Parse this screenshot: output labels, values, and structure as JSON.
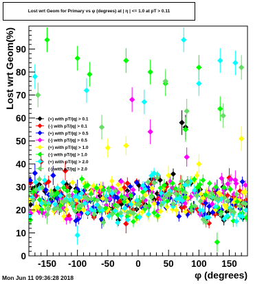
{
  "chart_data": {
    "type": "scatter",
    "title": "Lost wrt Geom for Primary vs φ (degrees) at | η | <= 1.0 at pT > 0.11",
    "xlabel": "φ (degrees)",
    "ylabel": "Lost wrt Geom(%)",
    "xlim": [
      -180,
      180
    ],
    "ylim": [
      0,
      100
    ],
    "x_ticks": [
      "-150",
      "-100",
      "-50",
      "0",
      "50",
      "100",
      "150"
    ],
    "y_ticks": [
      "0",
      "10",
      "20",
      "30",
      "40",
      "50",
      "60",
      "70",
      "80",
      "90"
    ],
    "grid": false,
    "legend_placement": "left-middle",
    "series": [
      {
        "name": "(+) with pT/|q| > 0.1",
        "color": "#000000",
        "marker": "diamond",
        "seed": 11,
        "highlights": [
          [
            72,
            58
          ],
          [
            78,
            56
          ],
          [
            -130,
            22
          ],
          [
            -100,
            19
          ],
          [
            40,
            27
          ],
          [
            140,
            30
          ]
        ]
      },
      {
        "name": "(-) with pT/|q| > 0.1",
        "color": "#ff0000",
        "marker": "diamond",
        "seed": 23,
        "highlights": [
          [
            -120,
            37
          ],
          [
            -160,
            41
          ],
          [
            -20,
            14
          ],
          [
            70,
            31
          ],
          [
            150,
            34
          ],
          [
            110,
            23
          ]
        ]
      },
      {
        "name": "(+) with pT/|q| > 0.5",
        "color": "#0000ff",
        "marker": "diamond",
        "seed": 37,
        "highlights": [
          [
            -170,
            36
          ],
          [
            -140,
            35
          ],
          [
            -100,
            29
          ],
          [
            -60,
            16
          ],
          [
            110,
            18
          ],
          [
            130,
            29
          ]
        ]
      },
      {
        "name": "(-) with pT/|q| > 0.5",
        "color": "#ff00ff",
        "marker": "diamond",
        "seed": 41,
        "highlights": [
          [
            -10,
            68
          ],
          [
            20,
            54
          ],
          [
            80,
            43
          ],
          [
            140,
            27
          ],
          [
            -40,
            22
          ],
          [
            160,
            33
          ]
        ]
      },
      {
        "name": "(+) with pT/|q| > 1.0",
        "color": "#ffff00",
        "marker": "diamond",
        "seed": 53,
        "highlights": [
          [
            -50,
            47
          ],
          [
            -20,
            48
          ],
          [
            100,
            40
          ],
          [
            170,
            51
          ],
          [
            -90,
            20
          ],
          [
            50,
            35
          ]
        ]
      },
      {
        "name": "(-) with pT/|q| > 1.0",
        "color": "#00ff00",
        "marker": "diamond",
        "seed": 61,
        "highlights": [
          [
            -100,
            86
          ],
          [
            -80,
            79
          ],
          [
            -20,
            85
          ],
          [
            20,
            80
          ],
          [
            45,
            75
          ],
          [
            78,
            55
          ],
          [
            100,
            82
          ],
          [
            135,
            64
          ],
          [
            -150,
            94
          ],
          [
            130,
            6
          ]
        ]
      },
      {
        "name": "(+) with pT/|q| > 2.0",
        "color": "#00ffff",
        "marker": "diamond",
        "seed": 71,
        "highlights": [
          [
            -170,
            78
          ],
          [
            -85,
            72
          ],
          [
            10,
            67
          ],
          [
            75,
            94
          ],
          [
            100,
            75
          ],
          [
            135,
            85
          ],
          [
            160,
            84
          ],
          [
            -100,
            9
          ]
        ]
      },
      {
        "name": "(-) with pT/|q| > 2.0",
        "color": "#66dd66",
        "marker": "diamond",
        "seed": 83,
        "highlights": [
          [
            -165,
            70
          ],
          [
            45,
            76
          ],
          [
            80,
            63
          ],
          [
            140,
            61
          ],
          [
            170,
            82
          ],
          [
            -60,
            56
          ],
          [
            -150,
            18
          ]
        ]
      }
    ]
  },
  "timestamp": "Mon Jun 11 09:36:28 2018"
}
